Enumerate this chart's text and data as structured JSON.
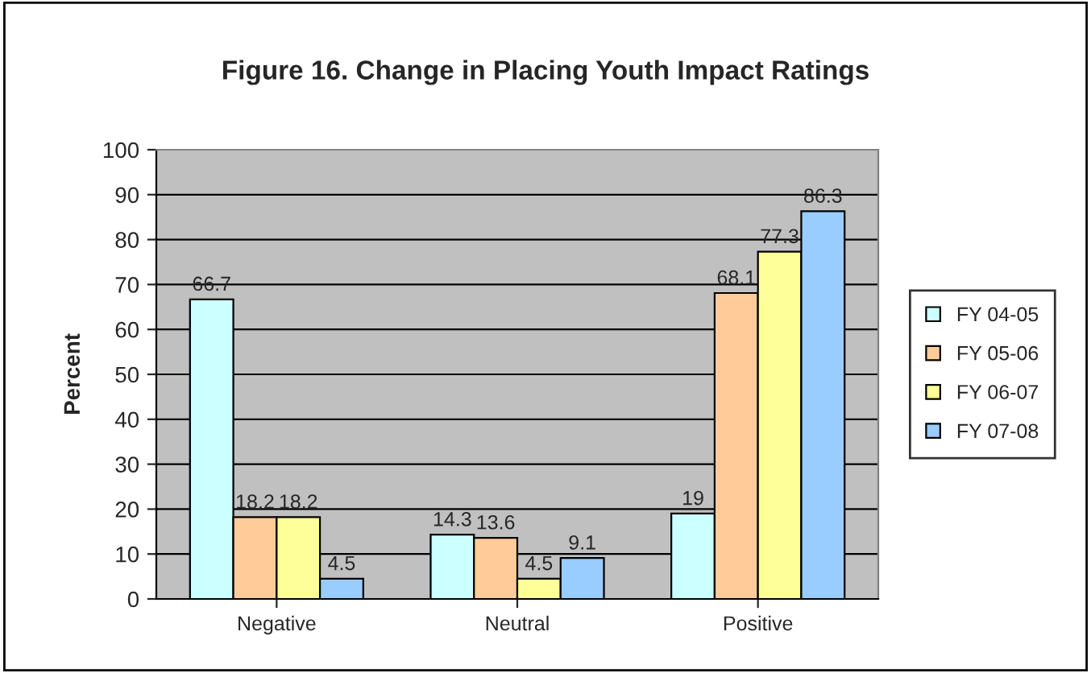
{
  "chart_data": {
    "type": "bar",
    "title": "Figure 16. Change in Placing Youth Impact Ratings",
    "ylabel": "Percent",
    "categories": [
      "Negative",
      "Neutral",
      "Positive"
    ],
    "series": [
      {
        "name": "FY 04-05",
        "color": "#ccffff",
        "values": [
          66.7,
          14.3,
          19
        ]
      },
      {
        "name": "FY 05-06",
        "color": "#ffcc99",
        "values": [
          18.2,
          13.6,
          68.1
        ]
      },
      {
        "name": "FY 06-07",
        "color": "#ffff99",
        "values": [
          18.2,
          4.5,
          77.3
        ]
      },
      {
        "name": "FY 07-08",
        "color": "#99ccff",
        "values": [
          4.5,
          9.1,
          86.3
        ]
      }
    ],
    "ylim": [
      0,
      100
    ],
    "yticks": [
      0,
      10,
      20,
      30,
      40,
      50,
      60,
      70,
      80,
      90,
      100
    ],
    "grid": "y",
    "legend": "right",
    "data_labels": true
  }
}
